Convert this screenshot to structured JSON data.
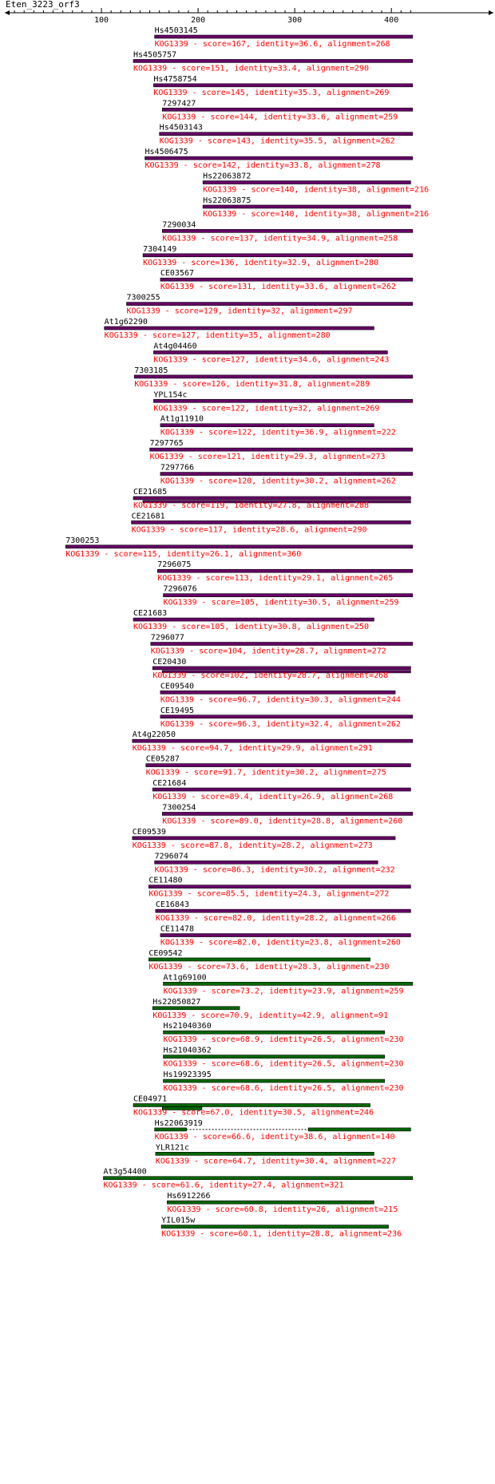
{
  "query": {
    "name": "Eten_3223_orf3",
    "axis_ticks": [
      100,
      200,
      300,
      400
    ]
  },
  "colors": {
    "axis": "#000000",
    "label_text": "#000000",
    "desc_text": "#ff0000",
    "bar_purple": "#660066",
    "bar_green": "#006600",
    "gap_line": "#000000"
  },
  "legend_entries": [],
  "hits": [
    {
      "name": "Hs4503145",
      "desc": "KOG1339 - score=167, identity=36.6, alignment=268",
      "start": 155,
      "end": 422,
      "color": "purple"
    },
    {
      "name": "Hs4505757",
      "desc": "KOG1339 - score=151, identity=33.4, alignment=290",
      "start": 133,
      "end": 422,
      "color": "purple"
    },
    {
      "name": "Hs4758754",
      "desc": "KOG1339 - score=145, identity=35.3, alignment=269",
      "start": 154,
      "end": 422,
      "color": "purple"
    },
    {
      "name": "7297427",
      "desc": "KOG1339 - score=144, identity=33.6, alignment=259",
      "start": 163,
      "end": 422,
      "color": "purple"
    },
    {
      "name": "Hs4503143",
      "desc": "KOG1339 - score=143, identity=35.5, alignment=262",
      "start": 160,
      "end": 422,
      "color": "purple"
    },
    {
      "name": "Hs4506475",
      "desc": "KOG1339 - score=142, identity=33.8, alignment=278",
      "start": 145,
      "end": 422,
      "color": "purple"
    },
    {
      "name": "Hs22063872",
      "desc": "KOG1339 - score=140, identity=38, alignment=216",
      "start": 205,
      "end": 420,
      "color": "purple"
    },
    {
      "name": "Hs22063875",
      "desc": "KOG1339 - score=140, identity=38, alignment=216",
      "start": 205,
      "end": 420,
      "color": "purple"
    },
    {
      "name": "7290034",
      "desc": "KOG1339 - score=137, identity=34.9, alignment=258",
      "start": 163,
      "end": 422,
      "color": "purple"
    },
    {
      "name": "7304149",
      "desc": "KOG1339 - score=136, identity=32.9, alignment=280",
      "start": 143,
      "end": 422,
      "color": "purple"
    },
    {
      "name": "CE03567",
      "desc": "KOG1339 - score=131, identity=33.6, alignment=262",
      "start": 161,
      "end": 422,
      "color": "purple"
    },
    {
      "name": "7300255",
      "desc": "KOG1339 - score=129, identity=32, alignment=297",
      "start": 126,
      "end": 422,
      "color": "purple"
    },
    {
      "name": "At1g62290",
      "desc": "KOG1339 - score=127, identity=35, alignment=280",
      "start": 103,
      "end": 382,
      "color": "purple"
    },
    {
      "name": "At4g04460",
      "desc": "KOG1339 - score=127, identity=34.6, alignment=243",
      "start": 154,
      "end": 396,
      "color": "purple"
    },
    {
      "name": "7303185",
      "desc": "KOG1339 - score=126, identity=31.8, alignment=289",
      "start": 134,
      "end": 422,
      "color": "purple"
    },
    {
      "name": "YPL154c",
      "desc": "KOG1339 - score=122, identity=32, alignment=269",
      "start": 154,
      "end": 422,
      "color": "purple"
    },
    {
      "name": "At1g11910",
      "desc": "KOG1339 - score=122, identity=36.9, alignment=222",
      "start": 161,
      "end": 382,
      "color": "purple"
    },
    {
      "name": "7297765",
      "desc": "KOG1339 - score=121, identity=29.3, alignment=273",
      "start": 150,
      "end": 422,
      "color": "purple"
    },
    {
      "name": "7297766",
      "desc": "KOG1339 - score=120, identity=30.2, alignment=262",
      "start": 161,
      "end": 422,
      "color": "purple"
    },
    {
      "name": "CE21685",
      "desc": "KOG1339 - score=119, identity=27.8, alignment=288",
      "start": 133,
      "end": 420,
      "color": "purple",
      "double": true
    },
    {
      "name": "CE21681",
      "desc": "KOG1339 - score=117, identity=28.6, alignment=290",
      "start": 131,
      "end": 420,
      "color": "purple"
    },
    {
      "name": "7300253",
      "desc": "KOG1339 - score=115, identity=26.1, alignment=360",
      "start": 63,
      "end": 422,
      "color": "purple"
    },
    {
      "name": "7296075",
      "desc": "KOG1339 - score=113, identity=29.1, alignment=265",
      "start": 158,
      "end": 422,
      "color": "purple"
    },
    {
      "name": "7296076",
      "desc": "KOG1339 - score=105, identity=30.5, alignment=259",
      "start": 164,
      "end": 422,
      "color": "purple"
    },
    {
      "name": "CE21683",
      "desc": "KOG1339 - score=105, identity=30.8, alignment=250",
      "start": 133,
      "end": 382,
      "color": "purple"
    },
    {
      "name": "7296077",
      "desc": "KOG1339 - score=104, identity=28.7, alignment=272",
      "start": 151,
      "end": 422,
      "color": "purple"
    },
    {
      "name": "CE20430",
      "desc": "KOG1339 - score=102, identity=28.7, alignment=268",
      "start": 153,
      "end": 420,
      "color": "purple",
      "double": true
    },
    {
      "name": "CE09540",
      "desc": "KOG1339 - score=96.7, identity=30.3, alignment=244",
      "start": 161,
      "end": 404,
      "color": "purple"
    },
    {
      "name": "CE19495",
      "desc": "KOG1339 - score=96.3, identity=32.4, alignment=262",
      "start": 161,
      "end": 422,
      "color": "purple"
    },
    {
      "name": "At4g22050",
      "desc": "KOG1339 - score=94.7, identity=29.9, alignment=291",
      "start": 132,
      "end": 422,
      "color": "purple"
    },
    {
      "name": "CE05287",
      "desc": "KOG1339 - score=91.7, identity=30.2, alignment=275",
      "start": 146,
      "end": 420,
      "color": "purple"
    },
    {
      "name": "CE21684",
      "desc": "KOG1339 - score=89.4, identity=26.9, alignment=268",
      "start": 153,
      "end": 420,
      "color": "purple"
    },
    {
      "name": "7300254",
      "desc": "KOG1339 - score=89.0, identity=28.8, alignment=260",
      "start": 163,
      "end": 422,
      "color": "purple"
    },
    {
      "name": "CE09539",
      "desc": "KOG1339 - score=87.8, identity=28.2, alignment=273",
      "start": 132,
      "end": 404,
      "color": "purple"
    },
    {
      "name": "7296074",
      "desc": "KOG1339 - score=86.3, identity=30.2, alignment=232",
      "start": 155,
      "end": 386,
      "color": "purple"
    },
    {
      "name": "CE11480",
      "desc": "KOG1339 - score=85.5, identity=24.3, alignment=272",
      "start": 149,
      "end": 420,
      "color": "purple"
    },
    {
      "name": "CE16843",
      "desc": "KOG1339 - score=82.0, identity=28.2, alignment=266",
      "start": 156,
      "end": 420,
      "color": "purple"
    },
    {
      "name": "CE11478",
      "desc": "KOG1339 - score=82.0, identity=23.8, alignment=260",
      "start": 161,
      "end": 420,
      "color": "purple"
    },
    {
      "name": "CE09542",
      "desc": "KOG1339 - score=73.6, identity=28.3, alignment=230",
      "start": 149,
      "end": 378,
      "color": "green"
    },
    {
      "name": "At1g69100",
      "desc": "KOG1339 - score=73.2, identity=23.9, alignment=259",
      "start": 164,
      "end": 422,
      "color": "green"
    },
    {
      "name": "Hs22050827",
      "desc": "KOG1339 - score=70.9, identity=42.9, alignment=91",
      "start": 153,
      "end": 243,
      "color": "green"
    },
    {
      "name": "Hs21040360",
      "desc": "KOG1339 - score=68.9, identity=26.5, alignment=230",
      "start": 164,
      "end": 393,
      "color": "green"
    },
    {
      "name": "Hs21040362",
      "desc": "KOG1339 - score=68.6, identity=26.5, alignment=230",
      "start": 164,
      "end": 393,
      "color": "green"
    },
    {
      "name": "Hs19923395",
      "desc": "KOG1339 - score=68.6, identity=26.5, alignment=230",
      "start": 164,
      "end": 393,
      "color": "green"
    },
    {
      "name": "CE04971",
      "desc": "KOG1339 - score=67.0, identity=30.5, alignment=246",
      "start": 133,
      "end": 378,
      "color": "green",
      "segments": [
        [
          133,
          378
        ],
        [
          163,
          204
        ]
      ]
    },
    {
      "name": "Hs22063919",
      "desc": "KOG1339 - score=66.6, identity=38.6, alignment=140",
      "start": 155,
      "end": 420,
      "color": "green",
      "segments": [
        [
          155,
          188
        ],
        [
          314,
          420
        ]
      ],
      "gap": [
        188,
        314
      ]
    },
    {
      "name": "YLR121c",
      "desc": "KOG1339 - score=64.7, identity=30.4, alignment=227",
      "start": 156,
      "end": 382,
      "color": "green"
    },
    {
      "name": "At3g54400",
      "desc": "KOG1339 - score=61.6, identity=27.4, alignment=321",
      "start": 102,
      "end": 422,
      "color": "green"
    },
    {
      "name": "Hs6912266",
      "desc": "KOG1339 - score=60.8, identity=26, alignment=215",
      "start": 168,
      "end": 382,
      "color": "green"
    },
    {
      "name": "YIL015w",
      "desc": "KOG1339 - score=60.1, identity=28.8, alignment=236",
      "start": 162,
      "end": 397,
      "color": "green"
    }
  ]
}
